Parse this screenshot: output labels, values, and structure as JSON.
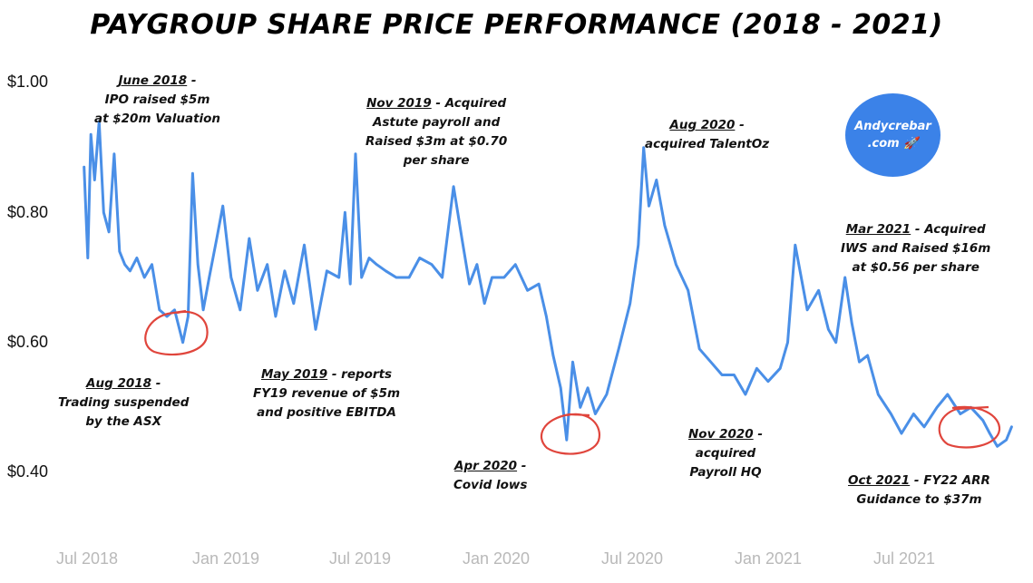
{
  "page": {
    "title": "PAYGROUP SHARE PRICE PERFORMANCE (2018 - 2021)",
    "badge_line1": "Andycrebar",
    "badge_line2": ".com 🚀"
  },
  "annotations": [
    {
      "head": "June 2018",
      "tail": " -",
      "lines": [
        "IPO raised $5m",
        "at $20m Valuation"
      ]
    },
    {
      "head": "Aug 2018",
      "tail": " -",
      "lines": [
        "Trading suspended",
        "by the ASX"
      ]
    },
    {
      "head": "May 2019",
      "tail": " - reports",
      "lines": [
        "FY19 revenue of $5m",
        "and positive EBITDA"
      ]
    },
    {
      "head": "Nov 2019",
      "tail": " - Acquired",
      "lines": [
        "Astute payroll and",
        "Raised $3m at $0.70",
        "per share"
      ]
    },
    {
      "head": "Apr 2020",
      "tail": " -",
      "lines": [
        "Covid lows"
      ]
    },
    {
      "head": "Aug 2020",
      "tail": " -",
      "lines": [
        "acquired TalentOz"
      ]
    },
    {
      "head": "Nov 2020",
      "tail": " -",
      "lines": [
        "acquired",
        "Payroll HQ"
      ]
    },
    {
      "head": "Mar 2021",
      "tail": " - Acquired",
      "lines": [
        "IWS and Raised $16m",
        "at $0.56 per share"
      ]
    },
    {
      "head": "Oct 2021",
      "tail": " - FY22 ARR",
      "lines": [
        "Guidance to $37m"
      ]
    }
  ],
  "colors": {
    "line": "#4a8fe7",
    "circle": "#e0453c",
    "badge": "#3b82e8"
  },
  "chart_data": {
    "type": "line",
    "title": "PAYGROUP SHARE PRICE PERFORMANCE (2018 - 2021)",
    "xlabel": "",
    "ylabel": "",
    "ylim": [
      0.4,
      1.0
    ],
    "y_ticks": [
      "$1.00",
      "$0.80",
      "$0.60",
      "$0.40"
    ],
    "x_ticks": [
      "Jul 2018",
      "Jan 2019",
      "Jul 2019",
      "Jan 2020",
      "Jul 2020",
      "Jan 2021",
      "Jul 2021"
    ],
    "grid": false,
    "legend": "none",
    "series": [
      {
        "x": [
          "2018-06-27",
          "2018-07-02",
          "2018-07-06",
          "2018-07-11",
          "2018-07-17",
          "2018-07-23",
          "2018-07-30",
          "2018-08-06",
          "2018-08-13",
          "2018-08-20",
          "2018-08-27",
          "2018-09-05",
          "2018-09-15",
          "2018-09-25",
          "2018-10-05",
          "2018-10-15",
          "2018-10-25",
          "2018-11-05",
          "2018-11-12",
          "2018-11-18",
          "2018-11-25",
          "2018-12-02",
          "2018-12-10",
          "2018-12-20",
          "2018-12-28",
          "2019-01-08",
          "2019-01-20",
          "2019-02-01",
          "2019-02-12",
          "2019-02-25",
          "2019-03-08",
          "2019-03-20",
          "2019-04-01",
          "2019-04-15",
          "2019-04-30",
          "2019-05-15",
          "2019-05-31",
          "2019-06-08",
          "2019-06-15",
          "2019-06-22",
          "2019-06-30",
          "2019-07-10",
          "2019-07-20",
          "2019-08-01",
          "2019-08-15",
          "2019-09-01",
          "2019-09-15",
          "2019-10-01",
          "2019-10-15",
          "2019-10-30",
          "2019-11-10",
          "2019-11-20",
          "2019-11-30",
          "2019-12-10",
          "2019-12-20",
          "2020-01-05",
          "2020-01-20",
          "2020-02-05",
          "2020-02-20",
          "2020-03-01",
          "2020-03-10",
          "2020-03-20",
          "2020-03-28",
          "2020-04-05",
          "2020-04-15",
          "2020-04-25",
          "2020-05-05",
          "2020-05-20",
          "2020-06-05",
          "2020-06-20",
          "2020-07-01",
          "2020-07-08",
          "2020-07-15",
          "2020-07-25",
          "2020-08-05",
          "2020-08-20",
          "2020-09-05",
          "2020-09-20",
          "2020-10-05",
          "2020-10-20",
          "2020-11-05",
          "2020-11-20",
          "2020-12-05",
          "2020-12-20",
          "2021-01-05",
          "2021-01-15",
          "2021-01-25",
          "2021-02-10",
          "2021-02-25",
          "2021-03-10",
          "2021-03-20",
          "2021-04-01",
          "2021-04-10",
          "2021-04-20",
          "2021-05-01",
          "2021-05-15",
          "2021-06-01",
          "2021-06-15",
          "2021-07-01",
          "2021-07-15",
          "2021-08-01",
          "2021-08-15",
          "2021-09-01",
          "2021-09-15",
          "2021-10-01",
          "2021-10-10",
          "2021-10-20",
          "2021-11-01",
          "2021-11-08"
        ],
        "y": [
          0.87,
          0.73,
          0.92,
          0.85,
          0.94,
          0.8,
          0.77,
          0.89,
          0.74,
          0.72,
          0.71,
          0.73,
          0.7,
          0.72,
          0.65,
          0.64,
          0.65,
          0.6,
          0.64,
          0.86,
          0.72,
          0.65,
          0.7,
          0.76,
          0.81,
          0.7,
          0.65,
          0.76,
          0.68,
          0.72,
          0.64,
          0.71,
          0.66,
          0.75,
          0.62,
          0.71,
          0.7,
          0.8,
          0.69,
          0.89,
          0.7,
          0.73,
          0.72,
          0.71,
          0.7,
          0.7,
          0.73,
          0.72,
          0.7,
          0.84,
          0.76,
          0.69,
          0.72,
          0.66,
          0.7,
          0.7,
          0.72,
          0.68,
          0.69,
          0.64,
          0.58,
          0.53,
          0.45,
          0.57,
          0.5,
          0.53,
          0.49,
          0.52,
          0.59,
          0.66,
          0.75,
          0.9,
          0.81,
          0.85,
          0.78,
          0.72,
          0.68,
          0.59,
          0.57,
          0.55,
          0.55,
          0.52,
          0.56,
          0.54,
          0.56,
          0.6,
          0.75,
          0.65,
          0.68,
          0.62,
          0.6,
          0.7,
          0.63,
          0.57,
          0.58,
          0.52,
          0.49,
          0.46,
          0.49,
          0.47,
          0.5,
          0.52,
          0.49,
          0.5,
          0.48,
          0.46,
          0.44,
          0.45,
          0.47
        ]
      }
    ]
  }
}
